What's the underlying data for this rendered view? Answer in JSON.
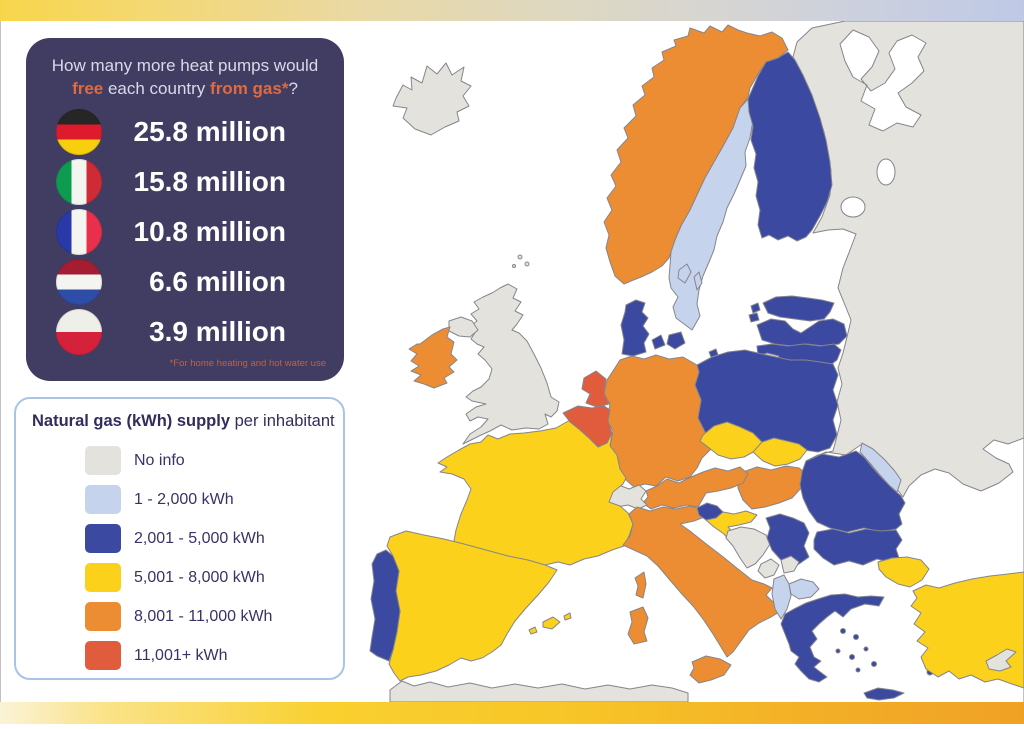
{
  "page": {
    "background": "#FFFFFF"
  },
  "top_bar": {
    "gradient_stops": [
      "#F8D64B 0%",
      "#F3D877 16%",
      "#E9D9A6 36%",
      "#DED8C0 54%",
      "#D6D5D2 70%",
      "#CBD0DF 85%",
      "#BFC9E6 100%"
    ]
  },
  "bottom_bar": {
    "gradient_stops": [
      "#FBF3D8 0%",
      "#FAE38A 10%",
      "#F9D02F 32%",
      "#F7C527 56%",
      "#F3AF27 80%",
      "#F0A125 100%"
    ]
  },
  "stats_panel": {
    "background": "#403C62",
    "accent_color": "#E26A3C",
    "text_color": "#D8DAE9",
    "footnote_color": "#C85F3C",
    "title_line1": "How many more heat pumps would",
    "title_line2_parts": [
      {
        "text": "free",
        "accent": true
      },
      {
        "text": " each country ",
        "accent": false
      },
      {
        "text": "from gas*",
        "accent": true
      },
      {
        "text": "?",
        "accent": false
      }
    ],
    "rows": [
      {
        "country": "Germany",
        "value": "25.8 million",
        "flag": {
          "stripes": "horizontal",
          "colors": [
            "#262626",
            "#DD1B2C",
            "#F7CF0C"
          ]
        }
      },
      {
        "country": "Italy",
        "value": "15.8 million",
        "flag": {
          "stripes": "vertical",
          "colors": [
            "#0D9C4F",
            "#F4F5F0",
            "#CE2B37"
          ]
        }
      },
      {
        "country": "France",
        "value": "10.8 million",
        "flag": {
          "stripes": "vertical",
          "colors": [
            "#2939A8",
            "#F4F5F0",
            "#E8304D"
          ]
        }
      },
      {
        "country": "Netherlands",
        "value": "6.6 million",
        "flag": {
          "stripes": "horizontal",
          "colors": [
            "#A51D31",
            "#F4F5F0",
            "#2E4DA7"
          ]
        }
      },
      {
        "country": "Poland",
        "value": "3.9 million",
        "flag": {
          "stripes": "horizontal",
          "colors": [
            "#EFEFEA",
            "#D6213B"
          ]
        }
      }
    ],
    "footnote": "*For home heating and hot water use"
  },
  "legend": {
    "border_color": "#A9C4E6",
    "text_color": "#312D5E",
    "title_bold": "Natural gas (kWh) supply",
    "title_regular": " per inhabitant",
    "items": [
      {
        "key": "no-info",
        "label": "No info",
        "color": "#E3E2DC"
      },
      {
        "key": "1-2000",
        "label": "1 - 2,000 kWh",
        "color": "#C6D3ED"
      },
      {
        "key": "2001-5000",
        "label": "2,001 - 5,000 kWh",
        "color": "#3B4AA0"
      },
      {
        "key": "5001-8000",
        "label": "5,001 - 8,000 kWh",
        "color": "#FBD11B"
      },
      {
        "key": "8001-11000",
        "label": "8,001 - 11,000 kWh",
        "color": "#EC8D33"
      },
      {
        "key": "11001plus",
        "label": "11,001+ kWh",
        "color": "#E15C3D"
      }
    ]
  },
  "map": {
    "sea_color": "#FFFFFF",
    "border_color": "#85858D",
    "countries": [
      {
        "id": "east-mass",
        "name": "Russia / Belarus / Ukraine",
        "category": "no-info"
      },
      {
        "id": "kaliningrad",
        "name": "Kaliningrad",
        "category": "no-info"
      },
      {
        "id": "iceland",
        "name": "Iceland",
        "category": "no-info"
      },
      {
        "id": "norway",
        "name": "Norway",
        "category": "8001-11000"
      },
      {
        "id": "sweden",
        "name": "Sweden",
        "category": "1-2000"
      },
      {
        "id": "gotland",
        "name": "Gotland",
        "category": "1-2000"
      },
      {
        "id": "oland",
        "name": "Oland",
        "category": "1-2000"
      },
      {
        "id": "finland",
        "name": "Finland",
        "category": "2001-5000"
      },
      {
        "id": "estonia",
        "name": "Estonia",
        "category": "2001-5000"
      },
      {
        "id": "latvia",
        "name": "Latvia",
        "category": "2001-5000"
      },
      {
        "id": "lithuania",
        "name": "Lithuania",
        "category": "2001-5000"
      },
      {
        "id": "poland",
        "name": "Poland",
        "category": "2001-5000"
      },
      {
        "id": "denmark",
        "name": "Denmark",
        "category": "2001-5000"
      },
      {
        "id": "denmark-islands",
        "name": "Danish islands",
        "category": "2001-5000"
      },
      {
        "id": "bornholm",
        "name": "Bornholm",
        "category": "2001-5000"
      },
      {
        "id": "germany",
        "name": "Germany",
        "category": "8001-11000"
      },
      {
        "id": "netherlands",
        "name": "Netherlands",
        "category": "11001plus"
      },
      {
        "id": "belgium-luxembourg",
        "name": "Belgium / Luxembourg",
        "category": "11001plus"
      },
      {
        "id": "france",
        "name": "France",
        "category": "5001-8000"
      },
      {
        "id": "corsica",
        "name": "Corsica",
        "category": "8001-11000"
      },
      {
        "id": "uk",
        "name": "United Kingdom",
        "category": "no-info"
      },
      {
        "id": "shetland",
        "name": "Shetland",
        "category": "no-info"
      },
      {
        "id": "northern-ireland",
        "name": "Northern Ireland",
        "category": "no-info"
      },
      {
        "id": "ireland",
        "name": "Ireland",
        "category": "8001-11000"
      },
      {
        "id": "spain",
        "name": "Spain",
        "category": "5001-8000"
      },
      {
        "id": "balearics",
        "name": "Balearic Islands",
        "category": "5001-8000"
      },
      {
        "id": "portugal",
        "name": "Portugal",
        "category": "2001-5000"
      },
      {
        "id": "switzerland",
        "name": "Switzerland",
        "category": "no-info"
      },
      {
        "id": "austria",
        "name": "Austria",
        "category": "8001-11000"
      },
      {
        "id": "czechia",
        "name": "Czechia",
        "category": "5001-8000"
      },
      {
        "id": "slovakia",
        "name": "Slovakia",
        "category": "5001-8000"
      },
      {
        "id": "hungary",
        "name": "Hungary",
        "category": "8001-11000"
      },
      {
        "id": "italy",
        "name": "Italy",
        "category": "8001-11000"
      },
      {
        "id": "sardinia",
        "name": "Sardinia",
        "category": "8001-11000"
      },
      {
        "id": "sicily",
        "name": "Sicily",
        "category": "8001-11000"
      },
      {
        "id": "slovenia",
        "name": "Slovenia",
        "category": "2001-5000"
      },
      {
        "id": "croatia",
        "name": "Croatia",
        "category": "5001-8000"
      },
      {
        "id": "bosnia",
        "name": "Bosnia and Herzegovina",
        "category": "no-info"
      },
      {
        "id": "serbia",
        "name": "Serbia",
        "category": "2001-5000"
      },
      {
        "id": "montenegro",
        "name": "Montenegro",
        "category": "no-info"
      },
      {
        "id": "kosovo",
        "name": "Kosovo",
        "category": "no-info"
      },
      {
        "id": "albania",
        "name": "Albania",
        "category": "1-2000"
      },
      {
        "id": "north-macedonia",
        "name": "North Macedonia",
        "category": "1-2000"
      },
      {
        "id": "greece",
        "name": "Greece",
        "category": "2001-5000"
      },
      {
        "id": "greek-islands",
        "name": "Greek islands",
        "category": "2001-5000"
      },
      {
        "id": "crete",
        "name": "Crete",
        "category": "2001-5000"
      },
      {
        "id": "romania",
        "name": "Romania",
        "category": "2001-5000"
      },
      {
        "id": "moldova",
        "name": "Moldova",
        "category": "1-2000"
      },
      {
        "id": "bulgaria",
        "name": "Bulgaria",
        "category": "2001-5000"
      },
      {
        "id": "turkey-europe",
        "name": "Turkey (European part)",
        "category": "5001-8000"
      },
      {
        "id": "turkey",
        "name": "Turkey",
        "category": "5001-8000"
      },
      {
        "id": "cyprus",
        "name": "Cyprus",
        "category": "no-info"
      },
      {
        "id": "north-africa",
        "name": "North Africa",
        "category": "no-info"
      }
    ]
  }
}
